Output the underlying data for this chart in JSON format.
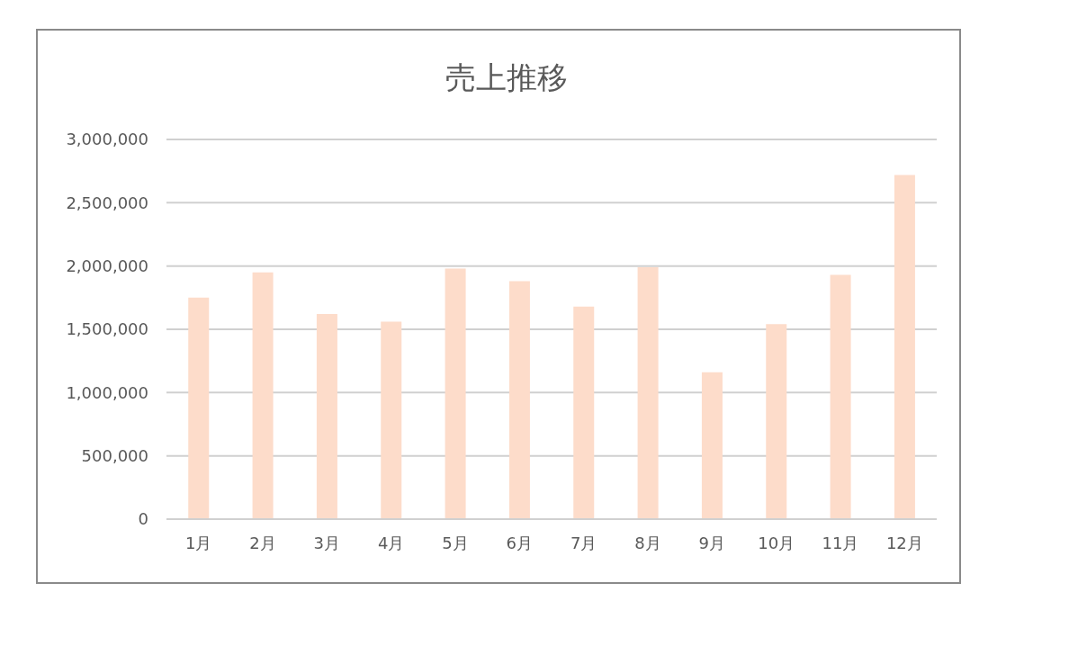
{
  "chart_data": {
    "type": "bar",
    "title": "売上推移",
    "categories": [
      "1月",
      "2月",
      "3月",
      "4月",
      "5月",
      "6月",
      "7月",
      "8月",
      "9月",
      "10月",
      "11月",
      "12月"
    ],
    "values": [
      1750000,
      1950000,
      1620000,
      1560000,
      1980000,
      1880000,
      1680000,
      1990000,
      1160000,
      1540000,
      1930000,
      2720000
    ],
    "color": "#fddcca",
    "ylim": [
      0,
      3000000
    ],
    "yticks": [
      0,
      {
        "value": 500000,
        "label": "500,000"
      },
      {
        "value": 1000000,
        "label": "1,000,000"
      },
      {
        "value": 1500000,
        "label": "1,500,000"
      },
      {
        "value": 2000000,
        "label": "2,000,000"
      },
      {
        "value": 2500000,
        "label": "2,500,000"
      },
      {
        "value": 3000000,
        "label": "3,000,000"
      }
    ],
    "grid": "y",
    "legend": false
  }
}
